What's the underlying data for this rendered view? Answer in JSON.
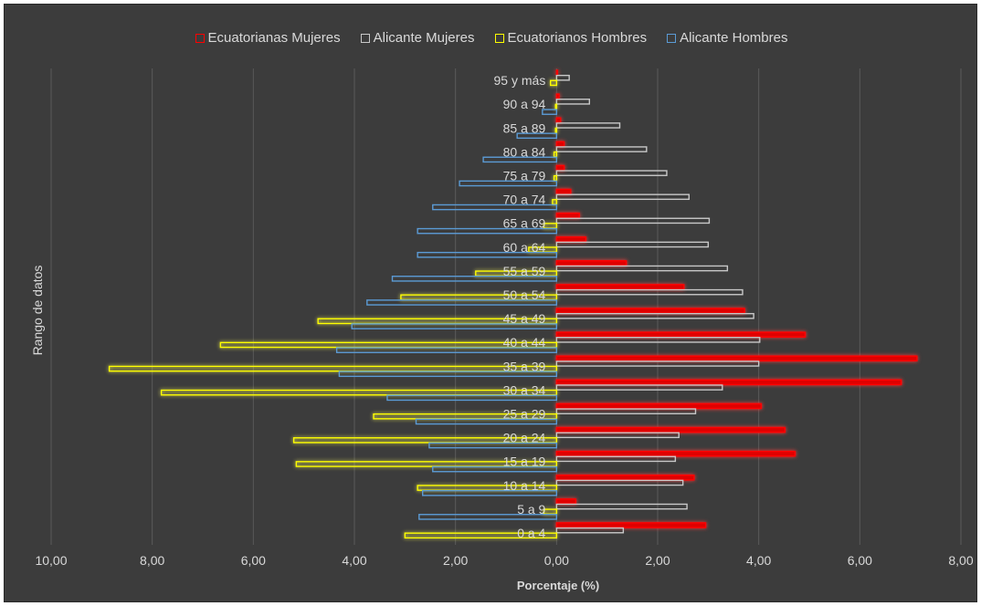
{
  "chart_data": {
    "type": "bar",
    "orientation": "horizontal",
    "title": "",
    "xlabel": "Porcentaje (%)",
    "ylabel": "Rango de datos",
    "xlim": [
      -10,
      8
    ],
    "x_ticks": [
      "10,00",
      "8,00",
      "6,00",
      "4,00",
      "2,00",
      "0,00",
      "2,00",
      "4,00",
      "6,00",
      "8,00"
    ],
    "legend_position": "top",
    "grid": true,
    "categories": [
      "0 a 4",
      "5 a 9",
      "10 a 14",
      "15 a 19",
      "20 a 24",
      "25 a 29",
      "30 a 34",
      "35 a 39",
      "40 a 44",
      "45 a 49",
      "50 a 54",
      "55 a 59",
      "60 a 64",
      "65 a 69",
      "70 a 74",
      "75 a 79",
      "80 a 84",
      "85 a 89",
      "90 a 94",
      "95 y más"
    ],
    "series": [
      {
        "name": "Ecuatorianas Mujeres",
        "color": "#ff0000",
        "values": [
          2.95,
          0.38,
          2.72,
          4.72,
          4.52,
          4.05,
          6.82,
          7.13,
          4.92,
          3.72,
          2.52,
          1.38,
          0.58,
          0.45,
          0.28,
          0.15,
          0.15,
          0.08,
          0.05,
          0.02
        ]
      },
      {
        "name": "Alicante Mujeres",
        "color": "#c8c8c8",
        "values": [
          1.32,
          2.58,
          2.5,
          2.35,
          2.42,
          2.75,
          3.28,
          4.0,
          4.02,
          3.9,
          3.68,
          3.38,
          3.0,
          3.02,
          2.62,
          2.18,
          1.78,
          1.25,
          0.65,
          0.25
        ]
      },
      {
        "name": "Ecuatorianos Hombres",
        "color": "#ffff00",
        "values": [
          -3.0,
          -0.25,
          -2.75,
          -5.15,
          -5.2,
          -3.62,
          -7.82,
          -8.85,
          -6.65,
          -4.72,
          -3.08,
          -1.6,
          -0.55,
          -0.25,
          -0.08,
          -0.05,
          -0.05,
          -0.02,
          -0.02,
          -0.12
        ]
      },
      {
        "name": "Alicante Hombres",
        "color": "#5b9bd5",
        "values": [
          -0.0,
          -2.72,
          -2.65,
          -2.45,
          -2.52,
          -2.78,
          -3.35,
          -4.3,
          -4.35,
          -4.05,
          -3.75,
          -3.25,
          -2.75,
          -2.75,
          -2.45,
          -1.92,
          -1.45,
          -0.78,
          -0.28,
          -0.0
        ]
      }
    ]
  }
}
